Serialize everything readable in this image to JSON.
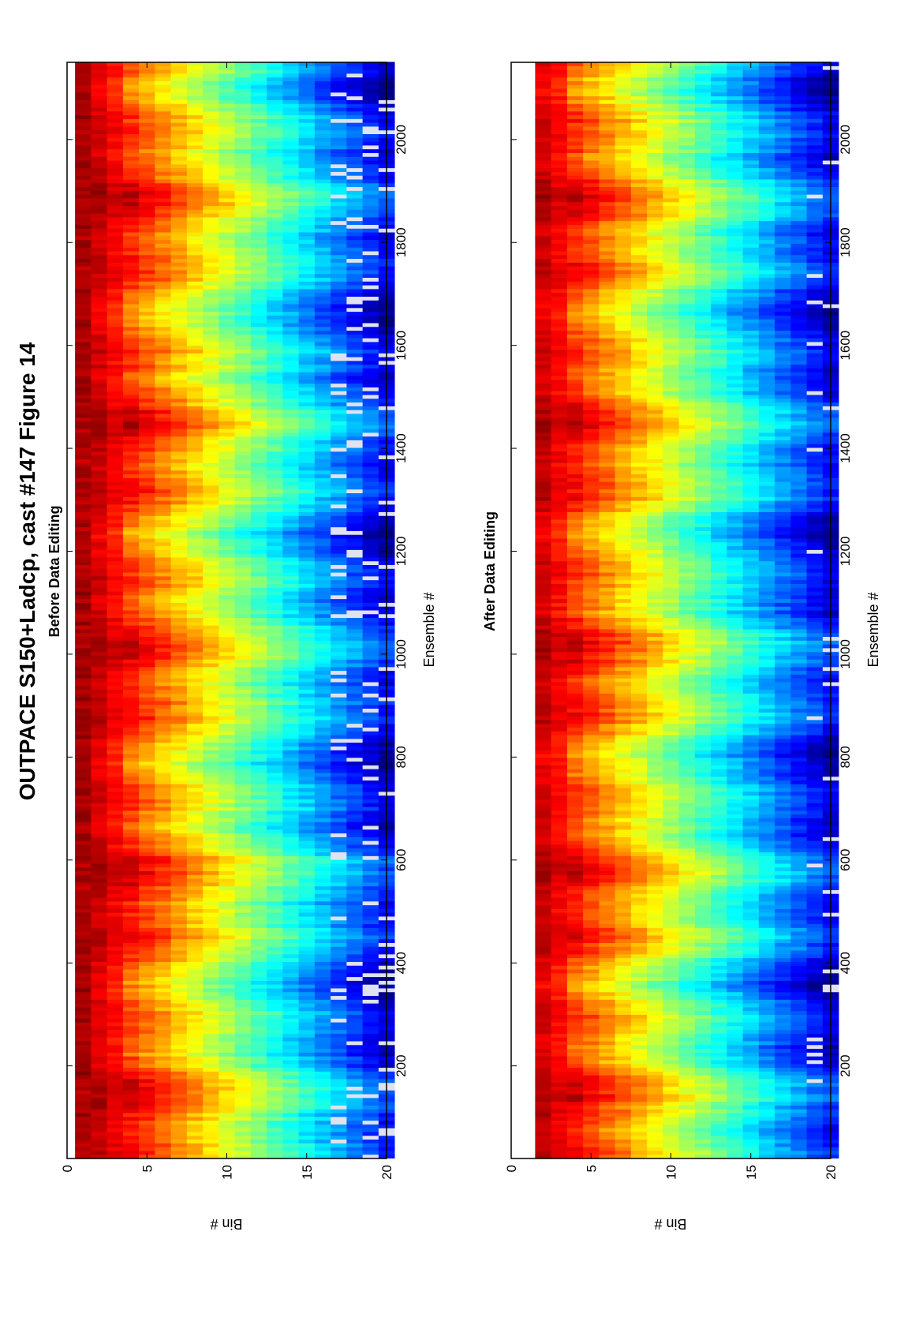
{
  "figure": {
    "title": "OUTPACE S150+Ladcp, cast #147  Figure 14"
  },
  "chart_data": [
    {
      "type": "heatmap",
      "title": "Before Data Editing",
      "xlabel": "Ensemble #",
      "ylabel": "Bin #",
      "xlim": [
        20,
        2150
      ],
      "ylim": [
        0,
        20
      ],
      "x_ticks": [
        200,
        400,
        600,
        800,
        1000,
        1200,
        1400,
        1600,
        1800,
        2000
      ],
      "y_ticks": [
        0,
        5,
        10,
        15,
        20
      ],
      "grid": false,
      "colormap": "jet",
      "bins_with_data": [
        1,
        20
      ],
      "gaps_bin_from": 17
    },
    {
      "type": "heatmap",
      "title": "After Data Editing",
      "xlabel": "Ensemble #",
      "ylabel": "Bin #",
      "xlim": [
        20,
        2150
      ],
      "ylim": [
        0,
        20
      ],
      "x_ticks": [
        200,
        400,
        600,
        800,
        1000,
        1200,
        1400,
        1600,
        1800,
        2000
      ],
      "y_ticks": [
        0,
        5,
        10,
        15,
        20
      ],
      "grid": false,
      "colormap": "jet",
      "bins_with_data": [
        2,
        20
      ],
      "gaps_bin_from": 19
    }
  ]
}
